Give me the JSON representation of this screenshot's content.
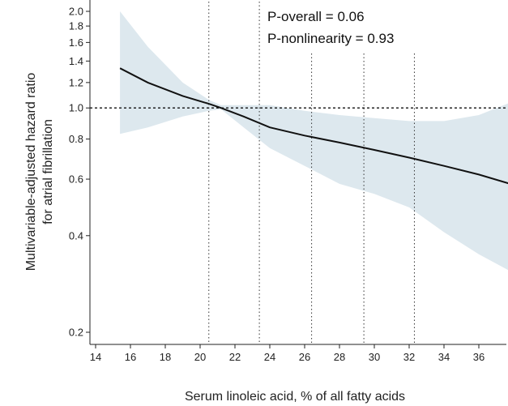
{
  "chart_data": {
    "type": "line",
    "title": "",
    "xlabel": "Serum linoleic acid, % of all fatty acids",
    "ylabel_line1": "Multivariable-adjusted hazard ratio",
    "ylabel_line2": "for atrial fibrillation",
    "x_scale": "linear",
    "y_scale": "log",
    "xlim": [
      14,
      38
    ],
    "ylim": [
      0.2,
      2.0
    ],
    "x_ticks": [
      14,
      16,
      18,
      20,
      22,
      24,
      26,
      28,
      30,
      32,
      34,
      36,
      38
    ],
    "y_ticks": [
      0.2,
      0.4,
      0.6,
      0.8,
      1.0,
      1.2,
      1.4,
      1.6,
      1.8,
      2.0
    ],
    "y_tick_labels": [
      "0.2",
      "0.4",
      "0.6",
      "0.8",
      "1.0",
      "1.2",
      "1.4",
      "1.6",
      "1.8",
      "2.0"
    ],
    "reference_line_y": 1.0,
    "vertical_dotted_lines_x": [
      20.5,
      23.4,
      26.4,
      29.4,
      32.3
    ],
    "annotations": [
      "P-overall = 0.06",
      "P-nonlinearity = 0.93"
    ],
    "series": [
      {
        "type": "line",
        "color": "#111111",
        "x": [
          15.4,
          17.0,
          19.0,
          20.5,
          21.2,
          22.5,
          24.0,
          26.0,
          28.0,
          30.0,
          32.0,
          34.0,
          36.0,
          37.8
        ],
        "y": [
          1.33,
          1.2,
          1.09,
          1.03,
          1.0,
          0.94,
          0.87,
          0.82,
          0.78,
          0.74,
          0.7,
          0.66,
          0.62,
          0.58
        ]
      }
    ],
    "confidence_band": {
      "color": "#dde8ee",
      "x": [
        15.4,
        17.0,
        19.0,
        20.5,
        21.2,
        22.5,
        24.0,
        26.0,
        28.0,
        30.0,
        32.0,
        34.0,
        36.0,
        37.8
      ],
      "upper": [
        2.05,
        1.55,
        1.2,
        1.06,
        1.02,
        1.02,
        1.02,
        0.98,
        0.95,
        0.93,
        0.91,
        0.91,
        0.95,
        1.04
      ],
      "lower": [
        0.83,
        0.87,
        0.94,
        0.98,
        0.99,
        0.87,
        0.75,
        0.66,
        0.58,
        0.54,
        0.49,
        0.41,
        0.35,
        0.31
      ]
    },
    "grid": false
  }
}
